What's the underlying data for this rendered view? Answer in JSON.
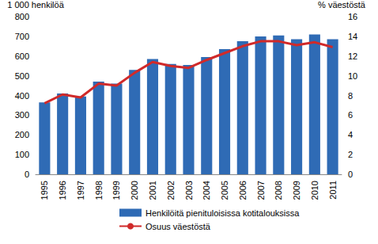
{
  "chart_data": {
    "type": "bar",
    "y_label": "1 000 henkilöä",
    "y2_label": "% väestöstä",
    "categories": [
      "1995",
      "1996",
      "1997",
      "1998",
      "1999",
      "2000",
      "2001",
      "2002",
      "2003",
      "2004",
      "2005",
      "2006",
      "2007",
      "2008",
      "2009",
      "2010",
      "2011"
    ],
    "series": [
      {
        "name": "Henkilöitä pienituloisissa kotitalouksissa",
        "type": "bar",
        "color": "#2f6bb5",
        "values": [
          365,
          410,
          395,
          470,
          460,
          530,
          585,
          560,
          555,
          595,
          635,
          675,
          700,
          705,
          685,
          710,
          685
        ]
      },
      {
        "name": "Osuus väestöstä",
        "type": "line",
        "axis": "y2",
        "color": "#d02a2a",
        "values": [
          7.2,
          8.1,
          7.8,
          9.2,
          9.0,
          10.3,
          11.4,
          11.0,
          10.8,
          11.6,
          12.3,
          13.0,
          13.5,
          13.5,
          13.1,
          13.4,
          12.9
        ]
      }
    ],
    "ylim": [
      0,
      800
    ],
    "yticks": [
      0,
      100,
      200,
      300,
      400,
      500,
      600,
      700,
      800
    ],
    "y2lim": [
      0,
      16
    ],
    "y2ticks": [
      0,
      2,
      4,
      6,
      8,
      10,
      12,
      14,
      16
    ],
    "grid": false,
    "legend": "bottom"
  }
}
